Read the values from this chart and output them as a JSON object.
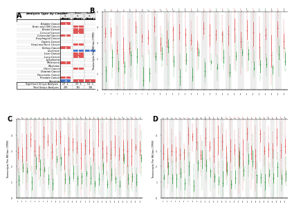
{
  "panel_A": {
    "label": "A",
    "header": "Analysis Type by Cancer",
    "col_labels": [
      "HMGB1",
      "HMGB2",
      "HMGB3"
    ],
    "rows": [
      "Bladder Cancer",
      "Brain and CNS Cancer",
      "Breast Cancer",
      "Cervical Cancer",
      "Colorectal Cancer",
      "Esophageal Cancer",
      "Gastric Cancer",
      "Head and Neck Cancer",
      "Kidney Cancer",
      "Leukemia",
      "Liver Cancer",
      "Lung Cancer",
      "Lymphoma",
      "Melanoma",
      "Myeloma",
      "Other Cancer",
      "Ovarian Cancer",
      "Pancreatic Cancer",
      "Prostate Cancer",
      "Sarcoma"
    ],
    "red_data": [
      [
        1,
        0,
        0
      ],
      [
        0,
        1,
        0
      ],
      [
        0,
        1,
        0
      ],
      [
        0,
        1,
        0
      ],
      [
        8,
        0,
        0
      ],
      [
        0,
        0,
        0
      ],
      [
        0,
        0,
        0
      ],
      [
        0,
        1,
        0
      ],
      [
        2,
        0,
        0
      ],
      [
        0,
        0,
        0
      ],
      [
        0,
        1,
        0
      ],
      [
        0,
        1,
        0
      ],
      [
        0,
        0,
        0
      ],
      [
        1,
        0,
        0
      ],
      [
        0,
        0,
        0
      ],
      [
        0,
        1,
        0
      ],
      [
        0,
        0,
        0
      ],
      [
        0,
        0,
        0
      ],
      [
        2,
        0,
        0
      ],
      [
        0,
        1,
        1
      ]
    ],
    "blue_data": [
      [
        0,
        0,
        0
      ],
      [
        0,
        0,
        0
      ],
      [
        0,
        0,
        0
      ],
      [
        0,
        0,
        0
      ],
      [
        0,
        0,
        0
      ],
      [
        0,
        0,
        0
      ],
      [
        0,
        0,
        0
      ],
      [
        0,
        0,
        0
      ],
      [
        0,
        0,
        0
      ],
      [
        0,
        4,
        5
      ],
      [
        0,
        0,
        0
      ],
      [
        0,
        0,
        0
      ],
      [
        0,
        0,
        0
      ],
      [
        0,
        0,
        0
      ],
      [
        0,
        0,
        0
      ],
      [
        0,
        0,
        0
      ],
      [
        0,
        0,
        0
      ],
      [
        0,
        0,
        0
      ],
      [
        0,
        0,
        0
      ],
      [
        2,
        0,
        0
      ]
    ],
    "leukemia_red": [
      0,
      4,
      7
    ],
    "footer_sig": [
      27,
      33,
      53
    ],
    "footer_sig2": [
      2,
      5,
      3
    ],
    "footer_total": [
      249,
      115,
      126
    ]
  },
  "n_cancer_B": 30,
  "n_cancer_C": 30,
  "n_cancer_D": 30,
  "red_color": "#e05555",
  "blue_color": "#4477cc",
  "dark_green": "#339944",
  "light_red": "#f0a0a0",
  "light_green": "#a0d0a0",
  "fig_bg": "#ffffff"
}
